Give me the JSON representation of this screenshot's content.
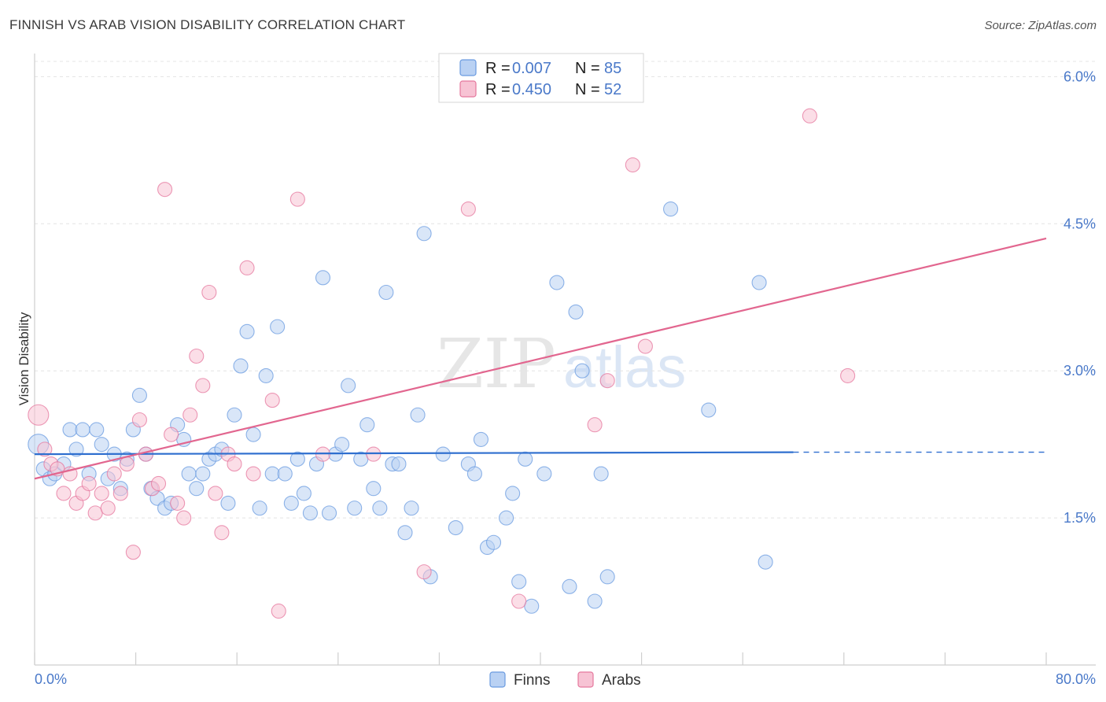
{
  "header": {
    "title": "FINNISH VS ARAB VISION DISABILITY CORRELATION CHART",
    "source": "Source: ZipAtlas.com"
  },
  "watermark": {
    "part1": "ZIP",
    "part2": "atlas"
  },
  "colors": {
    "finns": "#6a9be0",
    "finns_fill": "#b9d1f3",
    "arabs": "#e5779d",
    "arabs_fill": "#f7c3d4",
    "finns_line": "#2f6fcf",
    "arabs_line": "#e2668f",
    "axis_label": "#4a79c9"
  },
  "chart_data": {
    "type": "scatter",
    "title": "FINNISH VS ARAB VISION DISABILITY CORRELATION CHART",
    "xlabel": "",
    "ylabel": "Vision Disability",
    "xlim": [
      0,
      80
    ],
    "ylim": [
      0,
      6.3
    ],
    "x_tick_labels": [
      "0.0%",
      "80.0%"
    ],
    "y_ticks": [
      1.5,
      3.0,
      4.5,
      6.0
    ],
    "y_tick_labels": [
      "1.5%",
      "3.0%",
      "4.5%",
      "6.0%"
    ],
    "grid": true,
    "legend": {
      "position": "top-center",
      "entries": [
        {
          "series": "Finns",
          "r_label": "R =",
          "r_value": "0.007",
          "n_label": "N =",
          "n_value": "85"
        },
        {
          "series": "Arabs",
          "r_label": "R =",
          "r_value": "0.450",
          "n_label": "N =",
          "n_value": "52"
        }
      ]
    },
    "series": [
      {
        "name": "Finns",
        "trend": {
          "x": [
            0,
            60
          ],
          "y": [
            2.15,
            2.17
          ],
          "dashed_to_x": 80,
          "dashed_y": 2.17
        },
        "points": [
          [
            0.3,
            2.25
          ],
          [
            0.7,
            2.0
          ],
          [
            1.2,
            1.9
          ],
          [
            1.6,
            1.95
          ],
          [
            2.3,
            2.05
          ],
          [
            2.8,
            2.4
          ],
          [
            3.3,
            2.2
          ],
          [
            3.8,
            2.4
          ],
          [
            4.3,
            1.95
          ],
          [
            4.9,
            2.4
          ],
          [
            5.3,
            2.25
          ],
          [
            5.8,
            1.9
          ],
          [
            6.3,
            2.15
          ],
          [
            6.8,
            1.8
          ],
          [
            7.3,
            2.1
          ],
          [
            7.8,
            2.4
          ],
          [
            8.3,
            2.75
          ],
          [
            8.8,
            2.15
          ],
          [
            9.2,
            1.8
          ],
          [
            9.7,
            1.7
          ],
          [
            10.3,
            1.6
          ],
          [
            10.8,
            1.65
          ],
          [
            11.3,
            2.45
          ],
          [
            11.8,
            2.3
          ],
          [
            12.2,
            1.95
          ],
          [
            12.8,
            1.8
          ],
          [
            13.3,
            1.95
          ],
          [
            13.8,
            2.1
          ],
          [
            14.3,
            2.15
          ],
          [
            14.8,
            2.2
          ],
          [
            15.3,
            1.65
          ],
          [
            15.8,
            2.55
          ],
          [
            16.3,
            3.05
          ],
          [
            16.8,
            3.4
          ],
          [
            17.3,
            2.35
          ],
          [
            17.8,
            1.6
          ],
          [
            18.3,
            2.95
          ],
          [
            18.8,
            1.95
          ],
          [
            19.2,
            3.45
          ],
          [
            19.8,
            1.95
          ],
          [
            20.3,
            1.65
          ],
          [
            20.8,
            2.1
          ],
          [
            21.3,
            1.75
          ],
          [
            21.8,
            1.55
          ],
          [
            22.3,
            2.05
          ],
          [
            22.8,
            3.95
          ],
          [
            23.3,
            1.55
          ],
          [
            23.8,
            2.15
          ],
          [
            24.3,
            2.25
          ],
          [
            24.8,
            2.85
          ],
          [
            25.3,
            1.6
          ],
          [
            25.8,
            2.1
          ],
          [
            26.3,
            2.45
          ],
          [
            26.8,
            1.8
          ],
          [
            27.3,
            1.6
          ],
          [
            27.8,
            3.8
          ],
          [
            28.3,
            2.05
          ],
          [
            28.8,
            2.05
          ],
          [
            29.3,
            1.35
          ],
          [
            29.8,
            1.6
          ],
          [
            30.3,
            2.55
          ],
          [
            30.8,
            4.4
          ],
          [
            31.3,
            0.9
          ],
          [
            32.3,
            2.15
          ],
          [
            33.3,
            1.4
          ],
          [
            34.3,
            2.05
          ],
          [
            34.8,
            1.95
          ],
          [
            35.3,
            2.3
          ],
          [
            35.8,
            1.2
          ],
          [
            36.3,
            1.25
          ],
          [
            37.3,
            1.5
          ],
          [
            37.8,
            1.75
          ],
          [
            38.3,
            0.85
          ],
          [
            38.8,
            2.1
          ],
          [
            39.3,
            0.6
          ],
          [
            40.3,
            1.95
          ],
          [
            41.3,
            3.9
          ],
          [
            42.3,
            0.8
          ],
          [
            42.8,
            3.6
          ],
          [
            43.3,
            3.0
          ],
          [
            44.3,
            0.65
          ],
          [
            44.8,
            1.95
          ],
          [
            45.3,
            0.9
          ],
          [
            50.3,
            4.65
          ],
          [
            53.3,
            2.6
          ],
          [
            57.3,
            3.9
          ],
          [
            57.8,
            1.05
          ]
        ]
      },
      {
        "name": "Arabs",
        "trend": {
          "x": [
            0,
            80
          ],
          "y": [
            1.9,
            4.35
          ]
        },
        "points": [
          [
            0.3,
            2.55
          ],
          [
            0.8,
            2.2
          ],
          [
            1.3,
            2.05
          ],
          [
            1.8,
            2.0
          ],
          [
            2.3,
            1.75
          ],
          [
            2.8,
            1.95
          ],
          [
            3.3,
            1.65
          ],
          [
            3.8,
            1.75
          ],
          [
            4.3,
            1.85
          ],
          [
            4.8,
            1.55
          ],
          [
            5.3,
            1.75
          ],
          [
            5.8,
            1.6
          ],
          [
            6.3,
            1.95
          ],
          [
            6.8,
            1.75
          ],
          [
            7.3,
            2.05
          ],
          [
            7.8,
            1.15
          ],
          [
            8.3,
            2.5
          ],
          [
            8.8,
            2.15
          ],
          [
            9.3,
            1.8
          ],
          [
            9.8,
            1.85
          ],
          [
            10.3,
            4.85
          ],
          [
            10.8,
            2.35
          ],
          [
            11.3,
            1.65
          ],
          [
            11.8,
            1.5
          ],
          [
            12.3,
            2.55
          ],
          [
            12.8,
            3.15
          ],
          [
            13.3,
            2.85
          ],
          [
            13.8,
            3.8
          ],
          [
            14.3,
            1.75
          ],
          [
            14.8,
            1.35
          ],
          [
            15.3,
            2.15
          ],
          [
            15.8,
            2.05
          ],
          [
            16.8,
            4.05
          ],
          [
            17.3,
            1.95
          ],
          [
            18.8,
            2.7
          ],
          [
            19.3,
            0.55
          ],
          [
            20.8,
            4.75
          ],
          [
            22.8,
            2.15
          ],
          [
            26.8,
            2.15
          ],
          [
            30.8,
            0.95
          ],
          [
            34.3,
            4.65
          ],
          [
            38.3,
            0.65
          ],
          [
            44.3,
            2.45
          ],
          [
            45.3,
            2.9
          ],
          [
            47.3,
            5.1
          ],
          [
            48.3,
            3.25
          ],
          [
            61.3,
            5.6
          ],
          [
            64.3,
            2.95
          ]
        ]
      }
    ]
  },
  "bottom_legend": {
    "finns": "Finns",
    "arabs": "Arabs"
  }
}
